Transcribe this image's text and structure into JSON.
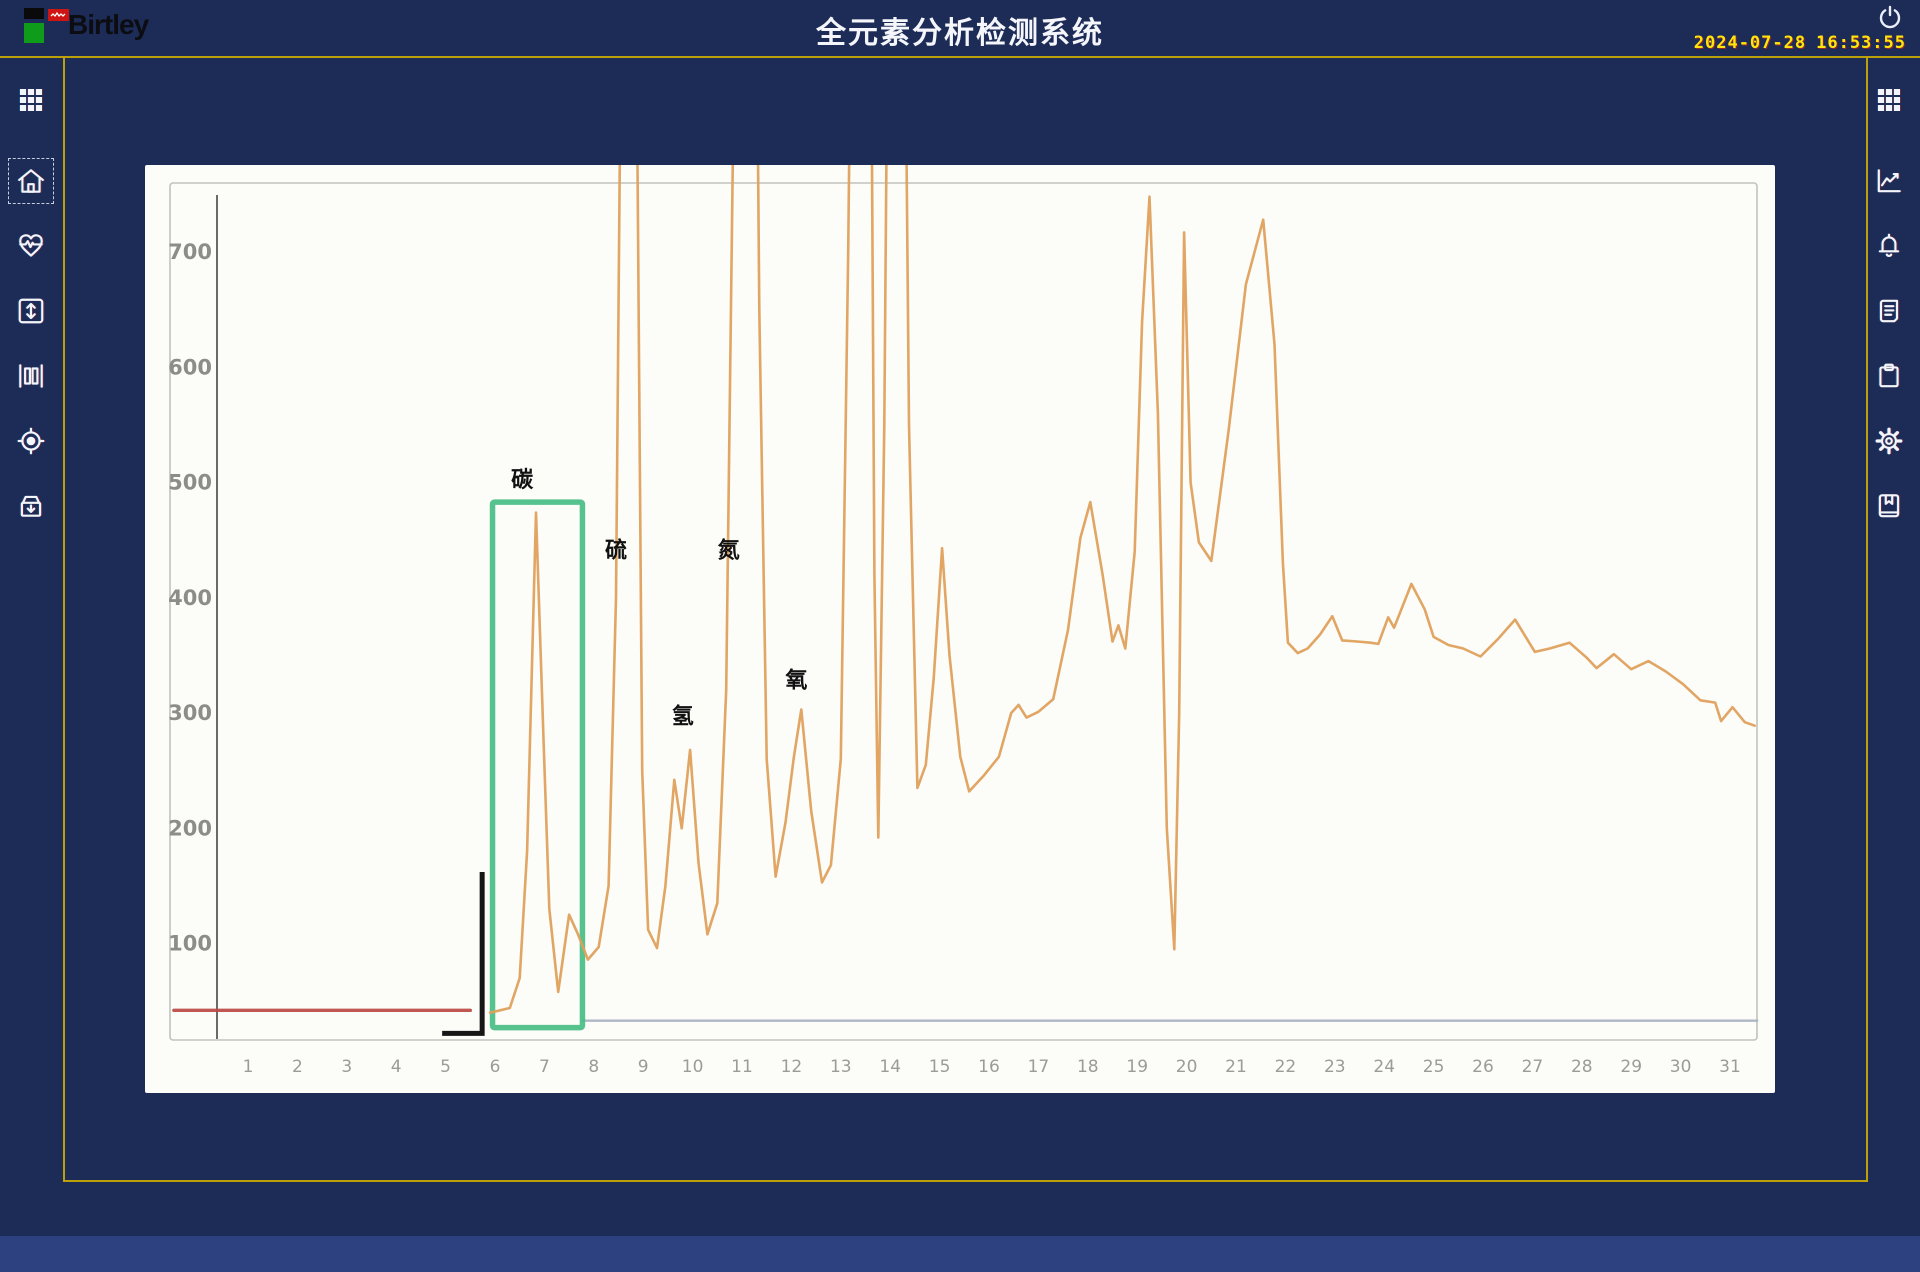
{
  "header": {
    "logo_text": "Birtley",
    "title": "全元素分析检测系统",
    "date": "2024-07-28",
    "time": "16:53:55"
  },
  "left_sidebar": {
    "items": [
      {
        "name": "apps",
        "icon": "apps-grid-icon",
        "selected": false
      },
      {
        "name": "home",
        "icon": "home-icon",
        "selected": true
      },
      {
        "name": "monitor",
        "icon": "heartbeat-icon",
        "selected": false
      },
      {
        "name": "vertical-range",
        "icon": "vertical-arrows-icon",
        "selected": false
      },
      {
        "name": "measure",
        "icon": "ruler-bars-icon",
        "selected": false
      },
      {
        "name": "target",
        "icon": "target-icon",
        "selected": false
      },
      {
        "name": "archive",
        "icon": "archive-box-icon",
        "selected": false
      }
    ]
  },
  "right_sidebar": {
    "items": [
      {
        "name": "apps",
        "icon": "apps-grid-icon",
        "selected": false
      },
      {
        "name": "trend",
        "icon": "line-chart-icon",
        "selected": false
      },
      {
        "name": "alarms",
        "icon": "bell-icon",
        "selected": false
      },
      {
        "name": "report",
        "icon": "document-icon",
        "selected": false
      },
      {
        "name": "tasks",
        "icon": "clipboard-icon",
        "selected": false
      },
      {
        "name": "settings",
        "icon": "gear-icon",
        "selected": false
      },
      {
        "name": "bookmark",
        "icon": "bookmark-book-icon",
        "selected": false
      }
    ]
  },
  "chart_data": {
    "type": "line",
    "title": "",
    "xlabel": "",
    "ylabel": "",
    "x_axis": {
      "ticks": [
        1,
        2,
        3,
        4,
        5,
        6,
        7,
        8,
        9,
        10,
        11,
        12,
        13,
        14,
        15,
        16,
        17,
        18,
        19,
        20,
        21,
        22,
        23,
        24,
        25,
        26,
        27,
        28,
        29,
        30,
        31
      ],
      "range": [
        0.4,
        31.9
      ]
    },
    "y_axis": {
      "ticks": [
        100,
        200,
        300,
        400,
        500,
        600,
        700
      ],
      "range": [
        15,
        760
      ]
    },
    "grid": false,
    "legend": "none",
    "series": [
      {
        "name": "chromatogram-trace",
        "color": "#dfa05c",
        "points": [
          [
            5.9,
            40
          ],
          [
            6.3,
            44
          ],
          [
            6.5,
            70
          ],
          [
            6.65,
            180
          ],
          [
            6.83,
            474
          ],
          [
            6.98,
            280
          ],
          [
            7.1,
            130
          ],
          [
            7.28,
            58
          ],
          [
            7.5,
            125
          ],
          [
            7.68,
            108
          ],
          [
            7.88,
            86
          ],
          [
            8.1,
            97
          ],
          [
            8.3,
            150
          ],
          [
            8.45,
            400
          ],
          [
            8.55,
            900
          ],
          [
            8.62,
            1300
          ],
          [
            8.78,
            1300
          ],
          [
            8.88,
            800
          ],
          [
            8.98,
            250
          ],
          [
            9.1,
            112
          ],
          [
            9.28,
            96
          ],
          [
            9.45,
            150
          ],
          [
            9.63,
            242
          ],
          [
            9.78,
            200
          ],
          [
            9.95,
            268
          ],
          [
            10.12,
            170
          ],
          [
            10.3,
            108
          ],
          [
            10.5,
            135
          ],
          [
            10.68,
            320
          ],
          [
            10.82,
            800
          ],
          [
            10.95,
            1300
          ],
          [
            11.22,
            1300
          ],
          [
            11.35,
            650
          ],
          [
            11.5,
            260
          ],
          [
            11.68,
            158
          ],
          [
            11.88,
            205
          ],
          [
            12.05,
            262
          ],
          [
            12.2,
            303
          ],
          [
            12.4,
            215
          ],
          [
            12.62,
            153
          ],
          [
            12.8,
            168
          ],
          [
            13.0,
            260
          ],
          [
            13.15,
            700
          ],
          [
            13.3,
            1300
          ],
          [
            13.56,
            1300
          ],
          [
            13.68,
            420
          ],
          [
            13.76,
            192
          ],
          [
            13.88,
            550
          ],
          [
            14.02,
            1300
          ],
          [
            14.22,
            1300
          ],
          [
            14.38,
            550
          ],
          [
            14.55,
            235
          ],
          [
            14.72,
            255
          ],
          [
            14.88,
            330
          ],
          [
            15.05,
            443
          ],
          [
            15.2,
            350
          ],
          [
            15.42,
            262
          ],
          [
            15.6,
            232
          ],
          [
            15.9,
            246
          ],
          [
            16.2,
            262
          ],
          [
            16.45,
            300
          ],
          [
            16.6,
            307
          ],
          [
            16.76,
            296
          ],
          [
            17.0,
            301
          ],
          [
            17.3,
            312
          ],
          [
            17.6,
            372
          ],
          [
            17.85,
            452
          ],
          [
            18.05,
            483
          ],
          [
            18.3,
            420
          ],
          [
            18.5,
            362
          ],
          [
            18.62,
            376
          ],
          [
            18.76,
            356
          ],
          [
            18.95,
            440
          ],
          [
            19.1,
            640
          ],
          [
            19.25,
            748
          ],
          [
            19.42,
            560
          ],
          [
            19.6,
            200
          ],
          [
            19.75,
            95
          ],
          [
            19.85,
            300
          ],
          [
            19.95,
            717
          ],
          [
            20.08,
            500
          ],
          [
            20.25,
            448
          ],
          [
            20.5,
            432
          ],
          [
            20.85,
            545
          ],
          [
            21.2,
            672
          ],
          [
            21.55,
            728
          ],
          [
            21.78,
            620
          ],
          [
            21.95,
            430
          ],
          [
            22.05,
            361
          ],
          [
            22.25,
            352
          ],
          [
            22.45,
            356
          ],
          [
            22.7,
            368
          ],
          [
            22.95,
            384
          ],
          [
            23.15,
            363
          ],
          [
            23.45,
            362
          ],
          [
            23.72,
            361
          ],
          [
            23.88,
            360
          ],
          [
            24.08,
            383
          ],
          [
            24.2,
            374
          ],
          [
            24.55,
            412
          ],
          [
            24.82,
            390
          ],
          [
            25.0,
            366
          ],
          [
            25.3,
            359
          ],
          [
            25.6,
            356
          ],
          [
            25.95,
            349
          ],
          [
            26.3,
            364
          ],
          [
            26.65,
            381
          ],
          [
            27.05,
            353
          ],
          [
            27.35,
            356
          ],
          [
            27.75,
            361
          ],
          [
            28.1,
            348
          ],
          [
            28.3,
            339
          ],
          [
            28.65,
            351
          ],
          [
            29.0,
            338
          ],
          [
            29.35,
            345
          ],
          [
            29.7,
            336
          ],
          [
            30.05,
            325
          ],
          [
            30.4,
            311
          ],
          [
            30.7,
            309
          ],
          [
            30.82,
            293
          ],
          [
            31.05,
            305
          ],
          [
            31.3,
            292
          ],
          [
            31.5,
            289
          ]
        ]
      }
    ],
    "baselines": [
      {
        "name": "red-baseline",
        "color": "#bc4a44",
        "t": [
          -0.5,
          5.5
        ],
        "value": 42
      },
      {
        "name": "gray-baseline",
        "color": "#a9b2c2",
        "t": [
          7.78,
          31.55
        ],
        "value": 33
      }
    ],
    "highlight_box": {
      "name": "carbon-region-box",
      "color": "#44bc83",
      "t": [
        5.95,
        7.77
      ],
      "v": [
        27,
        483
      ]
    },
    "bracket": {
      "color": "#161616",
      "points": [
        [
          4.93,
          22
        ],
        [
          5.74,
          22
        ],
        [
          5.74,
          162
        ]
      ]
    },
    "annotations": [
      {
        "text": "碳",
        "t": 6.55,
        "v": 496
      },
      {
        "text": "硫",
        "t": 8.45,
        "v": 435
      },
      {
        "text": "氢",
        "t": 9.8,
        "v": 291
      },
      {
        "text": "氮",
        "t": 10.73,
        "v": 435
      },
      {
        "text": "氧",
        "t": 12.1,
        "v": 322
      }
    ],
    "colors": {
      "frame": "#c2c2bd",
      "axis": "#6a6a66",
      "tick_label": "#9b9b97",
      "y_label": "#8c8c88"
    }
  },
  "theme": {
    "background": "#1d2b57",
    "accent_line": "#c3a805",
    "footer_bar": "#2d4080",
    "panel": "#fcfcf9",
    "clock": "#ffe60a"
  }
}
